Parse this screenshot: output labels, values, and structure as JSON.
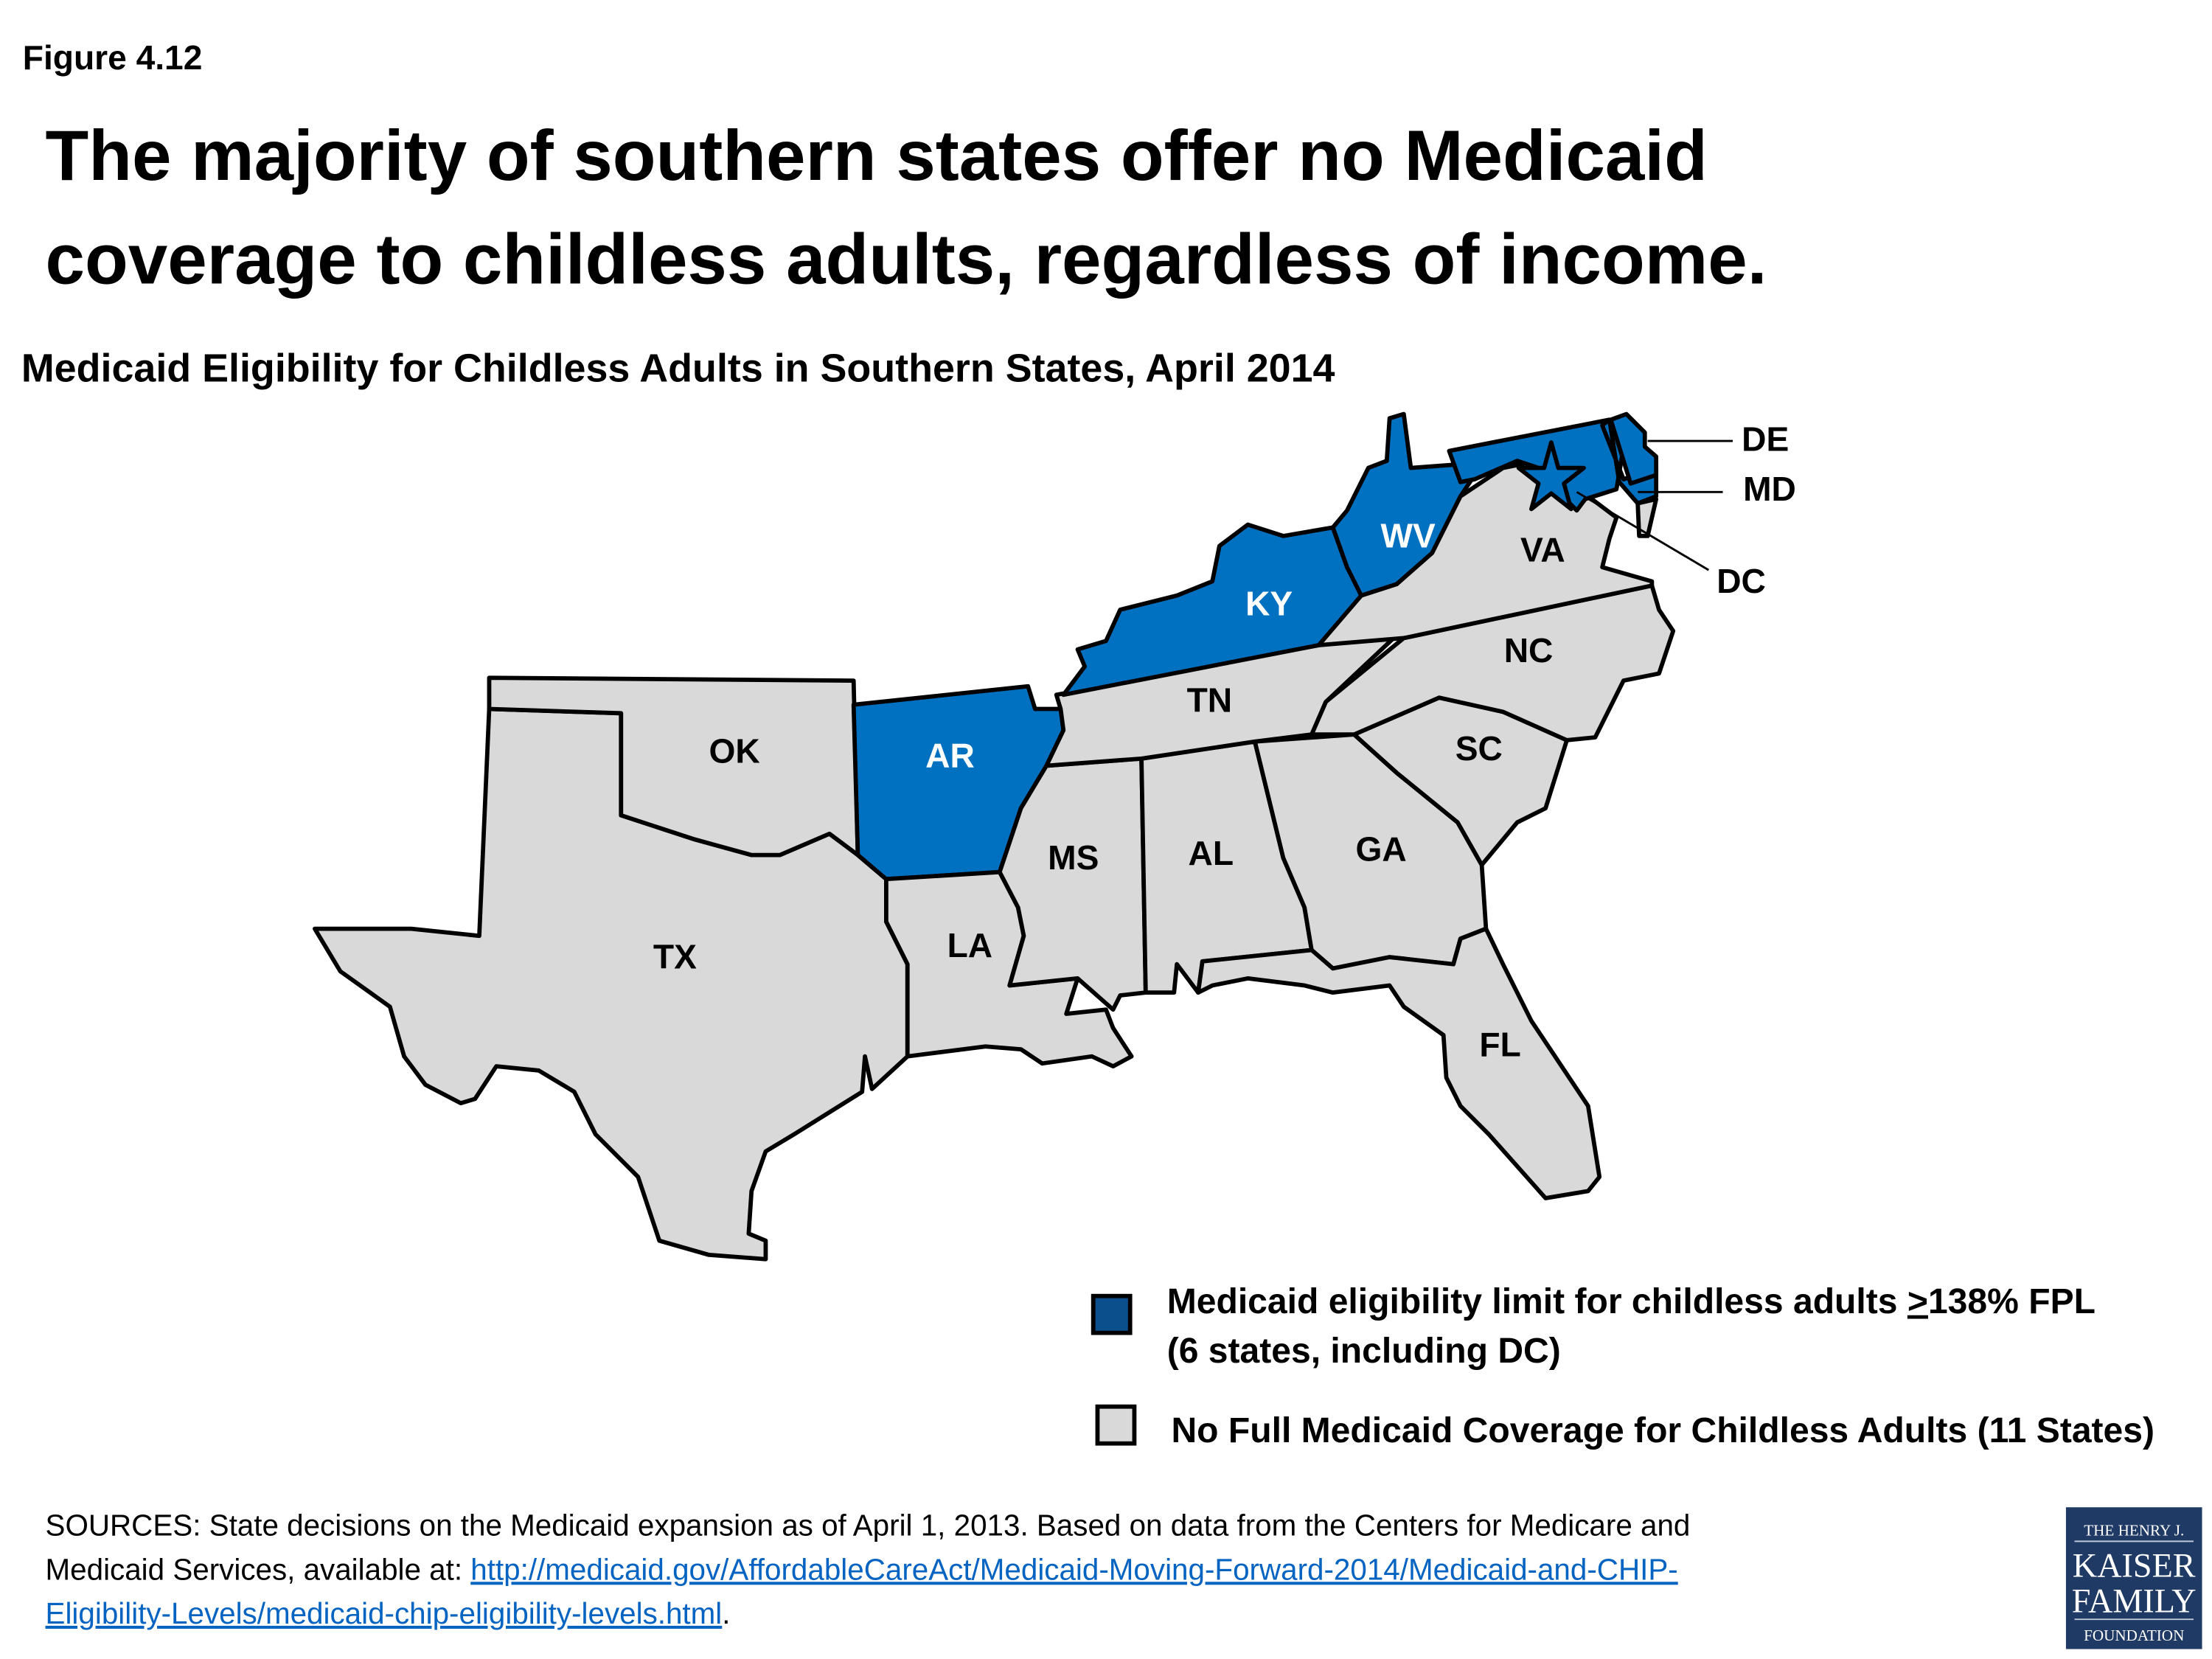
{
  "figure_label": "Figure 4.12",
  "title_lines": [
    "The majority of southern states offer no Medicaid",
    "coverage to childless adults, regardless of income."
  ],
  "subtitle": "Medicaid Eligibility for Childless Adults in Southern States, April 2014",
  "colors": {
    "expanded": "#0070C0",
    "not_covered": "#D9D9D9",
    "legend_expanded": "#0B4F8C",
    "logo_bg": "#1F3A64",
    "link": "#0563C1"
  },
  "states": {
    "TX": {
      "label": "TX",
      "category": "not_covered"
    },
    "OK": {
      "label": "OK",
      "category": "not_covered"
    },
    "AR": {
      "label": "AR",
      "category": "expanded"
    },
    "LA": {
      "label": "LA",
      "category": "not_covered"
    },
    "MS": {
      "label": "MS",
      "category": "not_covered"
    },
    "AL": {
      "label": "AL",
      "category": "not_covered"
    },
    "GA": {
      "label": "GA",
      "category": "not_covered"
    },
    "FL": {
      "label": "FL",
      "category": "not_covered"
    },
    "SC": {
      "label": "SC",
      "category": "not_covered"
    },
    "NC": {
      "label": "NC",
      "category": "not_covered"
    },
    "TN": {
      "label": "TN",
      "category": "not_covered"
    },
    "KY": {
      "label": "KY",
      "category": "expanded"
    },
    "WV": {
      "label": "WV",
      "category": "expanded"
    },
    "VA": {
      "label": "VA",
      "category": "not_covered"
    },
    "MD": {
      "label": "MD",
      "category": "expanded"
    },
    "DE": {
      "label": "DE",
      "category": "expanded"
    },
    "DC": {
      "label": "DC",
      "category": "expanded"
    }
  },
  "legend": {
    "expanded_line1_pre": "Medicaid eligibility limit for childless adults ",
    "expanded_line1_symbol": ">",
    "expanded_line1_post": "138% FPL",
    "expanded_line2": "(6 states, including DC)",
    "not_covered": "No Full Medicaid Coverage for Childless Adults (11 States)"
  },
  "sources": {
    "line1": "SOURCES: State decisions on the Medicaid expansion as of April 1, 2013. Based on data from the Centers for Medicare and",
    "line2_pre": "Medicaid Services, available at: ",
    "link_part1": "http://medicaid.gov/AffordableCareAct/Medicaid-Moving-Forward-2014/Medicaid-and-CHIP-",
    "link_part2": "Eligibility-Levels/medicaid-chip-eligibility-levels.html",
    "line3_post": "."
  },
  "logo": {
    "line1": "THE HENRY J.",
    "line2": "KAISER",
    "line3": "FAMILY",
    "line4": "FOUNDATION"
  }
}
